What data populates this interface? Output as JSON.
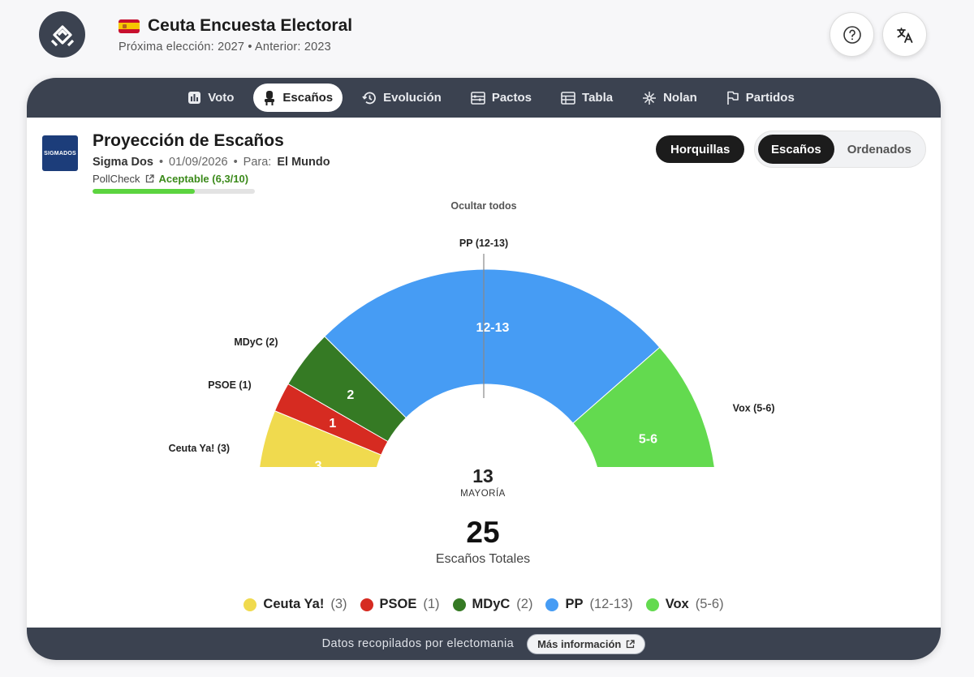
{
  "header": {
    "title": "Ceuta Encuesta Electoral",
    "subtitle": "Próxima elección: 2027 • Anterior: 2023",
    "help_icon": "question-circle-icon",
    "translate_icon": "translate-icon"
  },
  "nav": {
    "tabs": [
      {
        "label": "Voto",
        "icon": "bar-chart-icon"
      },
      {
        "label": "Escaños",
        "icon": "seat-icon",
        "active": true
      },
      {
        "label": "Evolución",
        "icon": "history-icon"
      },
      {
        "label": "Pactos",
        "icon": "abacus-icon"
      },
      {
        "label": "Tabla",
        "icon": "table-icon"
      },
      {
        "label": "Nolan",
        "icon": "compass-icon"
      },
      {
        "label": "Partidos",
        "icon": "flag-icon"
      }
    ]
  },
  "poll": {
    "source_logo_text": "SIGMADOS",
    "title": "Proyección de Escaños",
    "pollster": "Sigma Dos",
    "date": "01/09/2026",
    "for_label": "Para:",
    "media": "El Mundo",
    "pollcheck_label": "PollCheck",
    "rating": "Aceptable (6,3/10)",
    "rating_fraction": 0.63
  },
  "controls": {
    "horquillas": "Horquillas",
    "segments": [
      "Escaños",
      "Ordenados"
    ],
    "active_segment": "Escaños",
    "hide_all": "Ocultar todos"
  },
  "chart_data": {
    "type": "pie",
    "style": "hemicycle",
    "parties": [
      {
        "name": "Ceuta Ya!",
        "seats": 3,
        "range": "3",
        "label": "Ceuta Ya! (3)",
        "color": "#f0da4e"
      },
      {
        "name": "PSOE",
        "seats": 1,
        "range": "1",
        "label": "PSOE (1)",
        "color": "#d62b21"
      },
      {
        "name": "MDyC",
        "seats": 2,
        "range": "2",
        "label": "MDyC (2)",
        "color": "#357a24"
      },
      {
        "name": "PP",
        "seats": 12.5,
        "range": "12-13",
        "label": "PP (12-13)",
        "color": "#469cf4"
      },
      {
        "name": "Vox",
        "seats": 5.5,
        "range": "5-6",
        "label": "Vox (5-6)",
        "color": "#63da4f"
      }
    ],
    "majority": 13,
    "majority_label": "MAYORÍA",
    "total": 25,
    "total_label": "Escaños Totales"
  },
  "footer": {
    "text": "Datos recopilados por electomania",
    "more": "Más información"
  }
}
